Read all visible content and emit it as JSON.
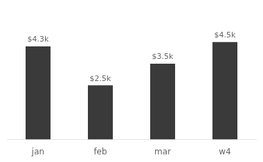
{
  "chart_data": {
    "type": "bar",
    "categories": [
      "jan",
      "feb",
      "mar",
      "w4"
    ],
    "values": [
      4300,
      2500,
      3500,
      4500
    ],
    "value_labels": [
      "$4.3k",
      "$2.5k",
      "$3.5k",
      "$4.5k"
    ],
    "data_labels": true,
    "color": "#3a3a3a",
    "ylim": [
      0,
      5800
    ],
    "grid": false,
    "tick_labels": "x"
  }
}
